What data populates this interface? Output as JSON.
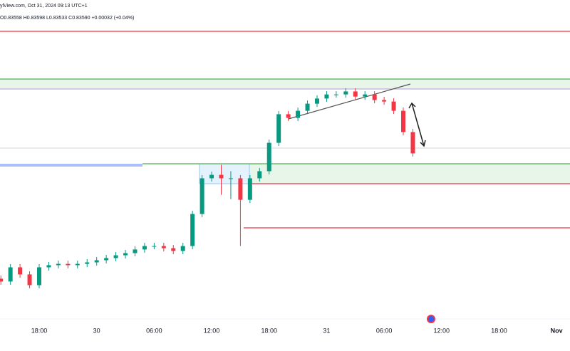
{
  "header": {
    "source": "ylView.com, Oct 31, 2024 09:13 UTC+1",
    "ohlc": "O0.83558 H0.83598 L0.83533 C0.83590 +0.00032 (+0.04%)"
  },
  "chart_data": {
    "type": "candlestick",
    "x": [
      -4,
      -3,
      -2,
      -1,
      0,
      1,
      2,
      3,
      4,
      5,
      6,
      7,
      8,
      9,
      10,
      11,
      12,
      13,
      14,
      15,
      16,
      17,
      18,
      19,
      20,
      21,
      22,
      23,
      24,
      25,
      26,
      27,
      28,
      29,
      30,
      31,
      32,
      33,
      34,
      35,
      36,
      37,
      38,
      39
    ],
    "open": [
      0.8303,
      0.83017,
      0.83083,
      0.8305,
      0.83,
      0.83083,
      0.83093,
      0.83099,
      0.83093,
      0.83099,
      0.83106,
      0.83116,
      0.83126,
      0.83139,
      0.83149,
      0.83166,
      0.83182,
      0.83182,
      0.83172,
      0.83159,
      0.83182,
      0.83331,
      0.83497,
      0.83513,
      0.83497,
      0.83497,
      0.83397,
      0.83497,
      0.8353,
      0.83662,
      0.83795,
      0.83778,
      0.83811,
      0.83844,
      0.83868,
      0.83887,
      0.83887,
      0.83901,
      0.83877,
      0.83887,
      0.83861,
      0.83854,
      0.83811,
      0.83712
    ],
    "high": [
      0.83045,
      0.83098,
      0.83098,
      0.83065,
      0.83098,
      0.83108,
      0.83114,
      0.83114,
      0.83114,
      0.83121,
      0.83131,
      0.83141,
      0.83154,
      0.83164,
      0.83181,
      0.83197,
      0.83197,
      0.83197,
      0.83187,
      0.83197,
      0.83346,
      0.83512,
      0.83528,
      0.8356,
      0.8353,
      0.83512,
      0.83512,
      0.83545,
      0.83677,
      0.8381,
      0.8381,
      0.83826,
      0.83859,
      0.83883,
      0.83902,
      0.83902,
      0.83916,
      0.83916,
      0.83902,
      0.83902,
      0.83876,
      0.83869,
      0.83826,
      0.83727
    ],
    "low": [
      0.83002,
      0.83002,
      0.83035,
      0.82985,
      0.82985,
      0.83068,
      0.83078,
      0.83078,
      0.83078,
      0.83084,
      0.83091,
      0.83101,
      0.83111,
      0.83124,
      0.83134,
      0.83151,
      0.83167,
      0.83157,
      0.83144,
      0.83144,
      0.83167,
      0.83316,
      0.83482,
      0.8342,
      0.834,
      0.83182,
      0.83382,
      0.83482,
      0.83515,
      0.83647,
      0.83763,
      0.83763,
      0.83796,
      0.83829,
      0.83853,
      0.83872,
      0.83872,
      0.83862,
      0.83862,
      0.83846,
      0.83839,
      0.83796,
      0.83697,
      0.83598
    ],
    "close": [
      0.83017,
      0.83083,
      0.8305,
      0.83,
      0.83083,
      0.83093,
      0.83099,
      0.83093,
      0.83099,
      0.83106,
      0.83116,
      0.83126,
      0.83139,
      0.83149,
      0.83166,
      0.83182,
      0.83182,
      0.83172,
      0.83159,
      0.83182,
      0.83331,
      0.83497,
      0.83513,
      0.83497,
      0.83497,
      0.83397,
      0.83497,
      0.8353,
      0.83662,
      0.83795,
      0.83778,
      0.83811,
      0.83844,
      0.83868,
      0.83887,
      0.83887,
      0.83901,
      0.83877,
      0.83887,
      0.83861,
      0.83854,
      0.83811,
      0.83712,
      0.83613
    ],
    "xlim": [
      -4.09,
      55.4
    ],
    "ylim": [
      0.8277,
      0.8426
    ],
    "xticks": [
      {
        "value": 0,
        "label": "18:00"
      },
      {
        "value": 6,
        "label": "30"
      },
      {
        "value": 12,
        "label": "06:00"
      },
      {
        "value": 18,
        "label": "12:00"
      },
      {
        "value": 24,
        "label": "18:00"
      },
      {
        "value": 30,
        "label": "31"
      },
      {
        "value": 36,
        "label": "06:00"
      },
      {
        "value": 42,
        "label": "12:00"
      },
      {
        "value": 48,
        "label": "18:00"
      },
      {
        "value": 54,
        "label": "Nov"
      }
    ],
    "grid": false,
    "up_color": "#089981",
    "down_color": "#f23645"
  }
}
